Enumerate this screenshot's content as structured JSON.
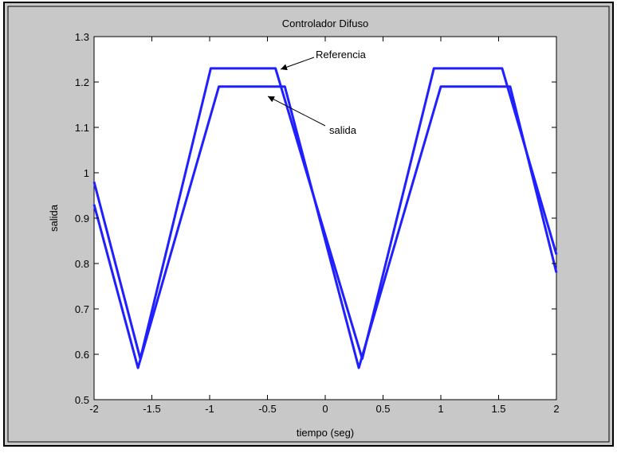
{
  "chart_data": {
    "type": "line",
    "title": "Controlador Difuso",
    "x_label": "tiempo (seg)",
    "y_label": "salida",
    "xlim": [
      -2,
      2
    ],
    "xticks": [
      -2,
      -1.5,
      -1,
      -0.5,
      0,
      0.5,
      1,
      1.5,
      2
    ],
    "ylim": [
      0.5,
      1.3
    ],
    "yticks": [
      0.5,
      0.6,
      0.7,
      0.8,
      0.9,
      1,
      1.1,
      1.2,
      1.3
    ],
    "grid": false,
    "annotations": [
      "Referencia",
      "salida"
    ],
    "series": [
      {
        "name": "Referencia",
        "color": "#1f1fff",
        "x": [
          -2,
          -1.6,
          -0.99,
          -0.43,
          0.32,
          0.94,
          1.53,
          2
        ],
        "values": [
          0.98,
          0.59,
          1.23,
          1.23,
          0.59,
          1.23,
          1.23,
          0.82
        ]
      },
      {
        "name": "salida",
        "color": "#1f1fff",
        "x": [
          -2,
          -1.62,
          -0.92,
          -0.35,
          0.29,
          1.0,
          1.6,
          2
        ],
        "values": [
          0.93,
          0.57,
          1.19,
          1.19,
          0.57,
          1.19,
          1.19,
          0.78
        ]
      }
    ]
  }
}
